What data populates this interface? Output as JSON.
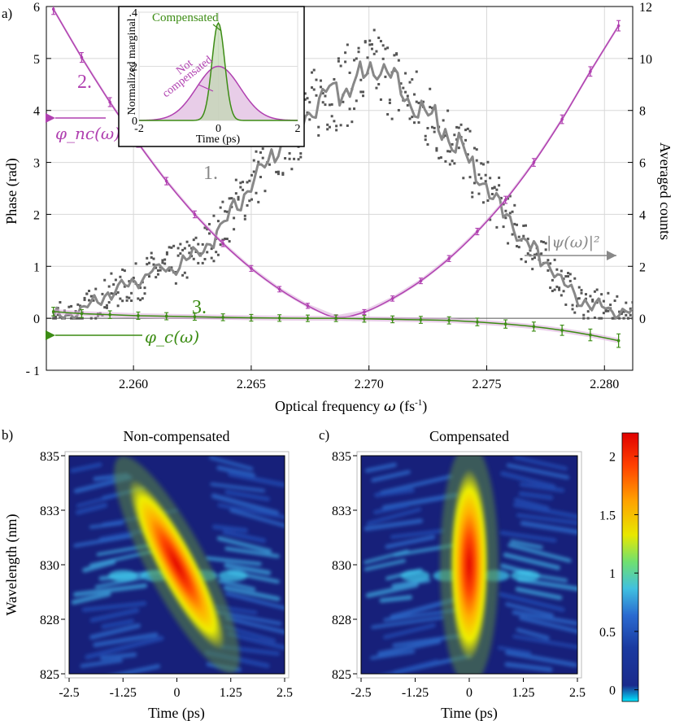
{
  "chart_data": [
    {
      "id": "a",
      "type": "line",
      "panel_label": "a)",
      "xlabel_text": "Optical frequency ",
      "xlabel_symbol": "ω",
      "xlabel_unit": "(fs",
      "xlabel_exp": "-1",
      "xlabel_close": ")",
      "ylabel_left": "Phase (rad)",
      "ylabel_right": "Averaged counts",
      "xlim": [
        2.2563,
        2.2812
      ],
      "ylim_left": [
        -1,
        6
      ],
      "ylim_right": [
        -2,
        12
      ],
      "xticks": [
        "2.260",
        "2.265",
        "2.270",
        "2.275",
        "2.280"
      ],
      "xtick_values": [
        2.26,
        2.265,
        2.27,
        2.275,
        2.28
      ],
      "yticks_left": [
        "- 1",
        "0",
        "1",
        "2",
        "3",
        "4",
        "5",
        "6"
      ],
      "ytick_left_values": [
        -1,
        0,
        1,
        2,
        3,
        4,
        5,
        6
      ],
      "yticks_right": [
        "0",
        "2",
        "4",
        "6",
        "8",
        "10",
        "12"
      ],
      "ytick_right_values": [
        0,
        2,
        4,
        6,
        8,
        10,
        12
      ],
      "grid": true,
      "series": [
        {
          "key": "nc",
          "label_number": "2.",
          "label_math": "φ_nc(ω)",
          "color": "#b040b0",
          "axis": "left",
          "x": [
            2.2566,
            2.2578,
            2.259,
            2.2602,
            2.2614,
            2.2626,
            2.2638,
            2.265,
            2.2662,
            2.2674,
            2.2686,
            2.2698,
            2.271,
            2.2722,
            2.2734,
            2.2746,
            2.2758,
            2.277,
            2.2782,
            2.2794,
            2.2806
          ],
          "y": [
            5.95,
            5.02,
            4.16,
            3.37,
            2.64,
            2.0,
            1.44,
            0.96,
            0.56,
            0.24,
            0.02,
            0.12,
            0.38,
            0.72,
            1.15,
            1.67,
            2.28,
            3.0,
            3.83,
            4.75,
            5.63
          ]
        },
        {
          "key": "c",
          "label_number": "3.",
          "label_math": "φ_c(ω)",
          "color": "#3c8c14",
          "axis": "left",
          "x": [
            2.2566,
            2.2578,
            2.259,
            2.2602,
            2.2614,
            2.2626,
            2.2638,
            2.265,
            2.2662,
            2.2674,
            2.2686,
            2.2698,
            2.271,
            2.2722,
            2.2734,
            2.2746,
            2.2758,
            2.277,
            2.2782,
            2.2794,
            2.2806
          ],
          "y": [
            0.13,
            0.09,
            0.07,
            0.05,
            0.04,
            0.03,
            0.02,
            0.01,
            0.005,
            0.0,
            0.0,
            -0.01,
            -0.02,
            -0.03,
            -0.04,
            -0.07,
            -0.11,
            -0.16,
            -0.23,
            -0.32,
            -0.43
          ]
        },
        {
          "key": "counts",
          "label_number": "1.",
          "label_math": "|ψ(ω)|²",
          "color": "#888888",
          "axis": "right",
          "x": [
            2.2566,
            2.2572,
            2.2578,
            2.2584,
            2.259,
            2.2596,
            2.2602,
            2.2608,
            2.2614,
            2.262,
            2.2626,
            2.2632,
            2.2638,
            2.2644,
            2.265,
            2.2656,
            2.2662,
            2.2668,
            2.2674,
            2.268,
            2.2686,
            2.2692,
            2.2698,
            2.2704,
            2.271,
            2.2716,
            2.2722,
            2.2728,
            2.2734,
            2.274,
            2.2746,
            2.2752,
            2.2758,
            2.2764,
            2.277,
            2.2776,
            2.2782,
            2.2788,
            2.2794,
            2.28,
            2.2806,
            2.2812
          ],
          "y": [
            0.05,
            0.1,
            0.3,
            0.6,
            1.0,
            1.2,
            1.4,
            1.8,
            1.9,
            2.1,
            2.4,
            2.9,
            3.6,
            4.4,
            5.2,
            5.9,
            6.6,
            7.1,
            7.9,
            8.5,
            8.8,
            9.0,
            9.4,
            9.6,
            9.2,
            8.6,
            8.0,
            7.6,
            7.0,
            6.4,
            5.5,
            4.8,
            4.0,
            3.2,
            2.6,
            2.0,
            1.4,
            0.8,
            0.5,
            0.4,
            0.2,
            0.2
          ]
        }
      ],
      "inset": {
        "ylabel": "Normalized marginal",
        "xlabel": "Time (ps)",
        "xticks": [
          "-2",
          "0",
          "2"
        ],
        "xtick_values": [
          -2,
          0,
          2
        ],
        "yticks": [
          "0",
          ".2",
          ".4"
        ],
        "ytick_values": [
          0,
          0.2,
          0.4
        ],
        "xlim": [
          -2,
          2
        ],
        "ylim": [
          0,
          0.4
        ],
        "compensated_label": "Compensated",
        "not_compensated_label_1": "Not",
        "not_compensated_label_2": "compensated",
        "compensated": {
          "peak": 0.36,
          "sigma_ps": 0.16,
          "color": "#3c8c14"
        },
        "not_compensated": {
          "peak": 0.2,
          "sigma_ps": 0.55,
          "color": "#b040b0"
        }
      }
    },
    {
      "id": "b",
      "type": "heatmap",
      "panel_label": "b)",
      "title": "Non-compensated",
      "xlabel": "Time (ps)",
      "ylabel": "Wavelength (nm)",
      "xticks": [
        "-2.5",
        "-1.25",
        "0",
        "1.25",
        "2.5"
      ],
      "xtick_values": [
        -2.5,
        -1.25,
        0,
        1.25,
        2.5
      ],
      "yticks": [
        "825",
        "828",
        "830",
        "833",
        "835"
      ],
      "ytick_values": [
        825,
        827.5,
        830,
        832.5,
        835
      ],
      "xlim": [
        -2.5,
        2.5
      ],
      "ylim": [
        825,
        835
      ],
      "tilt": -0.28
    },
    {
      "id": "c",
      "type": "heatmap",
      "panel_label": "c)",
      "title": "Compensated",
      "xlabel": "Time (ps)",
      "xticks": [
        "-2.5",
        "-1.25",
        "0",
        "1.25",
        "2.5"
      ],
      "xtick_values": [
        -2.5,
        -1.25,
        0,
        1.25,
        2.5
      ],
      "yticks": [
        "825",
        "828",
        "830",
        "833",
        "835"
      ],
      "ytick_values": [
        825,
        827.5,
        830,
        832.5,
        835
      ],
      "xlim": [
        -2.5,
        2.5
      ],
      "ylim": [
        825,
        835
      ],
      "tilt": 0
    }
  ],
  "colorbar": {
    "ticks": [
      "0",
      "0.5",
      "1",
      "1.5",
      "2"
    ],
    "tick_values": [
      0,
      0.5,
      1,
      1.5,
      2
    ],
    "range": [
      -0.1,
      2.2
    ],
    "colors": [
      "#00e5ff",
      "#1a2a8c",
      "#1a3aa0",
      "#2a6ad0",
      "#40c0e0",
      "#70e070",
      "#e8e800",
      "#ffa000",
      "#ff4000",
      "#e00000"
    ]
  }
}
